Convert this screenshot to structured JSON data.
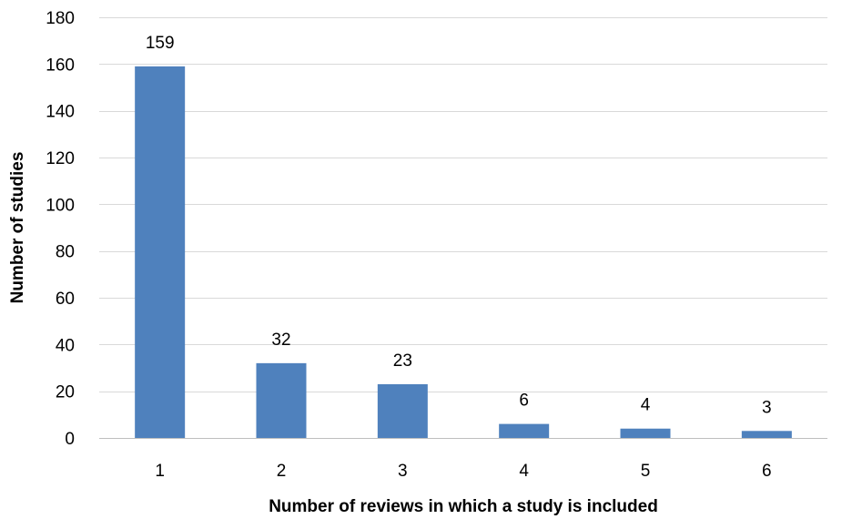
{
  "chart_data": {
    "type": "bar",
    "title": "",
    "categories": [
      "1",
      "2",
      "3",
      "4",
      "5",
      "6"
    ],
    "values": [
      159,
      32,
      23,
      6,
      4,
      3
    ],
    "data_labels": [
      "159",
      "32",
      "23",
      "6",
      "4",
      "3"
    ],
    "xlabel": "Number of reviews in which a study is included",
    "ylabel": "Number of studies",
    "ylim": [
      0,
      180
    ],
    "yticks": [
      0,
      20,
      40,
      60,
      80,
      100,
      120,
      140,
      160,
      180
    ],
    "grid": true,
    "legend": "none",
    "colors": {
      "bar": "#4f81bd",
      "grid": "#d9d9d9",
      "axis": "#bfbfbf",
      "text": "#000000"
    }
  }
}
